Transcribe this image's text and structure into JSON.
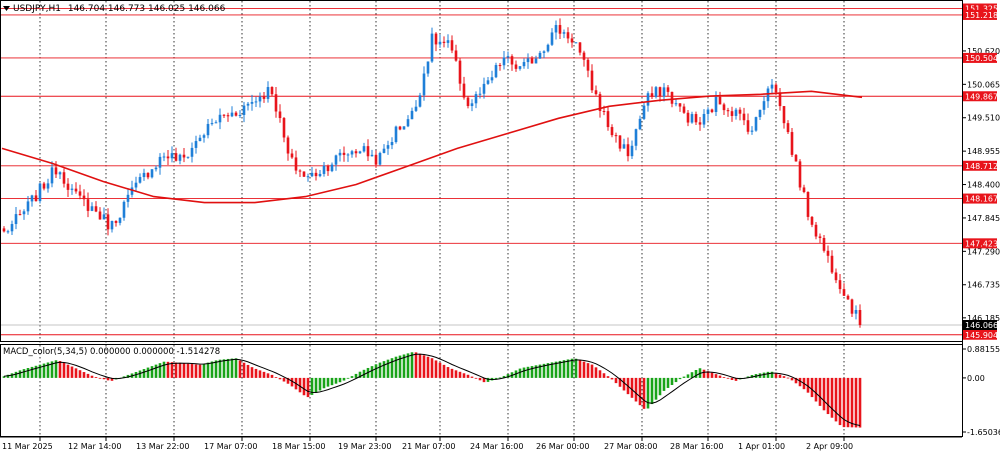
{
  "header": {
    "symbol_timeframe": "USDJPY,H1",
    "ohlc": "146.704 146.773 146.025 146.066",
    "menu_icon": "triangle-down-icon"
  },
  "colors": {
    "background": "#ffffff",
    "grid": "#000000",
    "bull": "#1e7fd8",
    "bear": "#e8141b",
    "ma": "#e01010",
    "level_line": "#e8141b",
    "level_label_bg": "#e8141b",
    "price_label_bg": "#000000",
    "macd_pos": "#19a319",
    "macd_neg": "#e8141b",
    "signal": "#000000"
  },
  "price_axis": {
    "ticks": [
      "150.620",
      "150.065",
      "149.510",
      "148.955",
      "148.400",
      "147.845",
      "147.290",
      "146.735",
      "146.185"
    ],
    "current_price": "146.066",
    "levels": [
      "151.325",
      "151.218",
      "150.504",
      "149.867",
      "148.712",
      "148.167",
      "147.423",
      "145.904"
    ]
  },
  "time_axis": {
    "labels": [
      "11 Mar 2025",
      "12 Mar 14:00",
      "13 Mar 22:00",
      "17 Mar 07:00",
      "18 Mar 15:00",
      "19 Mar 23:00",
      "21 Mar 07:00",
      "24 Mar 16:00",
      "26 Mar 00:00",
      "27 Mar 08:00",
      "28 Mar 16:00",
      "1 Apr 01:00",
      "2 Apr 09:00"
    ]
  },
  "macd": {
    "title": "MACD_color(5,34,5) 0.000000 0.000000 -1.514278",
    "ticks": [
      "0.881557",
      "0.00",
      "-1.650367"
    ]
  },
  "chart_data": [
    {
      "type": "candlestick",
      "title": "USDJPY,H1",
      "ylim": [
        145.9,
        151.4
      ],
      "series": [
        {
          "name": "price",
          "close_path": [
            {
              "x": "11 Mar 2025",
              "y": 147.6
            },
            {
              "x": "",
              "y": 147.9
            },
            {
              "x": "",
              "y": 148.3
            },
            {
              "x": "12 Mar 14:00",
              "y": 148.7
            },
            {
              "x": "",
              "y": 148.2
            },
            {
              "x": "",
              "y": 148.0
            },
            {
              "x": "",
              "y": 147.7
            },
            {
              "x": "13 Mar 22:00",
              "y": 148.2
            },
            {
              "x": "",
              "y": 148.6
            },
            {
              "x": "",
              "y": 148.9
            },
            {
              "x": "17 Mar 07:00",
              "y": 148.8
            },
            {
              "x": "",
              "y": 149.2
            },
            {
              "x": "",
              "y": 149.5
            },
            {
              "x": "18 Mar 15:00",
              "y": 149.6
            },
            {
              "x": "",
              "y": 149.8
            },
            {
              "x": "",
              "y": 150.0
            },
            {
              "x": "",
              "y": 148.8
            },
            {
              "x": "19 Mar 23:00",
              "y": 148.5
            },
            {
              "x": "",
              "y": 148.7
            },
            {
              "x": "",
              "y": 148.9
            },
            {
              "x": "",
              "y": 149.0
            },
            {
              "x": "21 Mar 07:00",
              "y": 148.8
            },
            {
              "x": "",
              "y": 149.3
            },
            {
              "x": "",
              "y": 149.6
            },
            {
              "x": "24 Mar 16:00",
              "y": 150.8
            },
            {
              "x": "",
              "y": 150.7
            },
            {
              "x": "",
              "y": 149.7
            },
            {
              "x": "",
              "y": 150.0
            },
            {
              "x": "26 Mar 00:00",
              "y": 150.5
            },
            {
              "x": "",
              "y": 150.3
            },
            {
              "x": "",
              "y": 150.6
            },
            {
              "x": "27 Mar 08:00",
              "y": 151.0
            },
            {
              "x": "",
              "y": 150.8
            },
            {
              "x": "",
              "y": 150.0
            },
            {
              "x": "",
              "y": 149.3
            },
            {
              "x": "28 Mar 16:00",
              "y": 148.9
            },
            {
              "x": "",
              "y": 149.8
            },
            {
              "x": "",
              "y": 150.0
            },
            {
              "x": "",
              "y": 149.6
            },
            {
              "x": "1 Apr 01:00",
              "y": 149.4
            },
            {
              "x": "",
              "y": 149.8
            },
            {
              "x": "",
              "y": 149.6
            },
            {
              "x": "",
              "y": 149.3
            },
            {
              "x": "2 Apr 09:00",
              "y": 150.2
            },
            {
              "x": "",
              "y": 149.2
            },
            {
              "x": "",
              "y": 148.0
            },
            {
              "x": "",
              "y": 147.3
            },
            {
              "x": "",
              "y": 146.7
            },
            {
              "x": "",
              "y": 146.066
            }
          ]
        },
        {
          "name": "moving-average",
          "values": [
            149.0,
            148.75,
            148.45,
            148.2,
            148.1,
            148.1,
            148.2,
            148.4,
            148.7,
            149.0,
            149.25,
            149.5,
            149.7,
            149.8,
            149.87,
            149.9,
            149.95,
            149.85
          ]
        }
      ]
    },
    {
      "type": "bar",
      "title": "MACD_color(5,34,5) 0.000000 0.000000 -1.514278",
      "ylim": [
        -1.650367,
        0.881557
      ],
      "values": [
        0.05,
        0.25,
        0.4,
        0.55,
        0.3,
        0.05,
        -0.1,
        0.1,
        0.3,
        0.5,
        0.45,
        0.4,
        0.55,
        0.6,
        0.3,
        0.1,
        -0.2,
        -0.6,
        -0.3,
        -0.1,
        0.2,
        0.45,
        0.65,
        0.8,
        0.6,
        0.3,
        0.1,
        -0.15,
        0.05,
        0.3,
        0.4,
        0.5,
        0.6,
        0.4,
        0.0,
        -0.5,
        -1.0,
        -0.4,
        0.0,
        0.3,
        0.1,
        -0.1,
        0.1,
        0.2,
        0.0,
        -0.4,
        -1.0,
        -1.5,
        -1.514278
      ]
    }
  ]
}
